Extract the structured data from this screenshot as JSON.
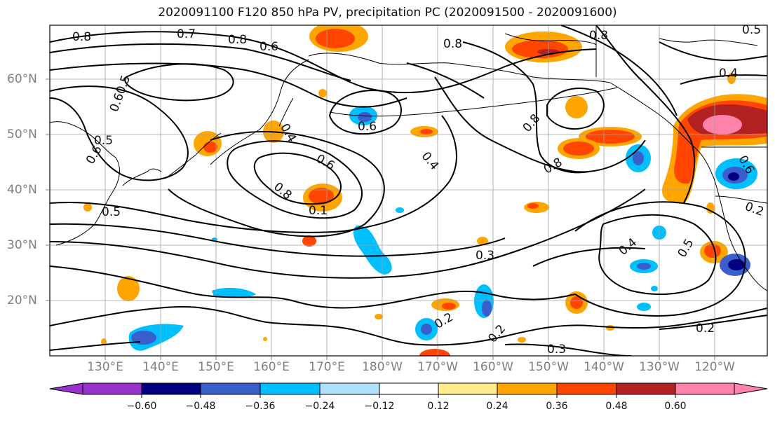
{
  "title": "2020091100 F120 850 hPa PV, precipitation PC (2020091500 - 2020091600)",
  "lat_labels": [
    "60°N",
    "50°N",
    "40°N",
    "30°N",
    "20°N"
  ],
  "lon_labels": [
    "130°E",
    "140°E",
    "150°E",
    "160°E",
    "170°E",
    "180°W",
    "170°W",
    "160°W",
    "150°W",
    "140°W",
    "130°W",
    "120°W"
  ],
  "colorbar": {
    "ticks": [
      "−0.60",
      "−0.48",
      "−0.36",
      "−0.24",
      "−0.12",
      "0.12",
      "0.24",
      "0.36",
      "0.48",
      "0.60"
    ],
    "colors": [
      "#9932cc",
      "#000080",
      "#3a5fcd",
      "#00bfff",
      "#b0e2ff",
      "#ffffff",
      "#ffec8b",
      "#ffa500",
      "#ff4500",
      "#b22222",
      "#ff82ab"
    ]
  },
  "contour_labels": [
    {
      "t": "0.8"
    },
    {
      "t": "0.7"
    },
    {
      "t": "0.8"
    },
    {
      "t": "0.6"
    },
    {
      "t": "0.8"
    },
    {
      "t": "0.8"
    },
    {
      "t": "0.5"
    },
    {
      "t": "0.60.5"
    },
    {
      "t": "0.5"
    },
    {
      "t": "0.6"
    },
    {
      "t": "0.5"
    },
    {
      "t": "0.4"
    },
    {
      "t": "0.6"
    },
    {
      "t": "0.8"
    },
    {
      "t": "0.6"
    },
    {
      "t": "0.4"
    },
    {
      "t": "0.8"
    },
    {
      "t": "0.8"
    },
    {
      "t": "0.1"
    },
    {
      "t": "0.3"
    },
    {
      "t": "0.4"
    },
    {
      "t": "0.5"
    },
    {
      "t": "0.2"
    },
    {
      "t": "0.2"
    },
    {
      "t": "0.2"
    },
    {
      "t": "0.3"
    },
    {
      "t": "0.2"
    },
    {
      "t": "0.6"
    },
    {
      "t": "0.4"
    }
  ]
}
